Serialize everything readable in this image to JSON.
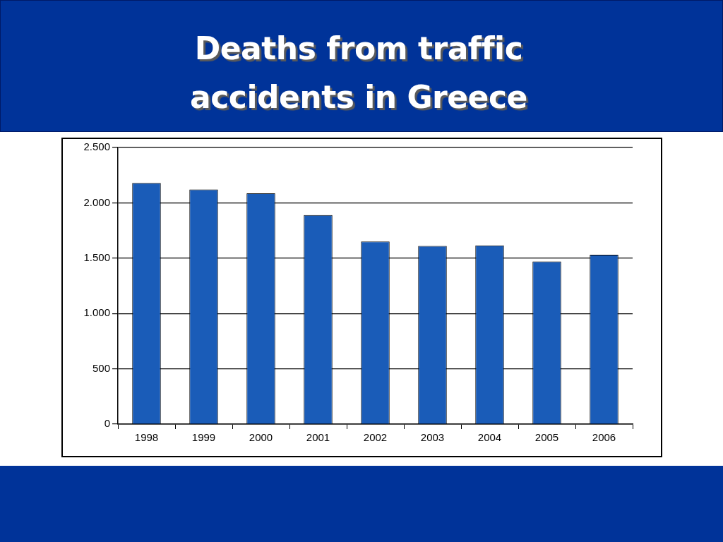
{
  "chart_data": {
    "type": "bar",
    "title": "Deaths from traffic accidents in Greece",
    "categories": [
      "1998",
      "1999",
      "2000",
      "2001",
      "2002",
      "2003",
      "2004",
      "2005",
      "2006"
    ],
    "values": [
      2180,
      2120,
      2085,
      1890,
      1650,
      1610,
      1615,
      1470,
      1530
    ],
    "color": "#1a5cb8",
    "ylim": [
      0,
      2500
    ],
    "yticks": [
      0,
      500,
      {
        "value": 1000,
        "label": "1.000"
      },
      {
        "value": 1500,
        "label": "1.500"
      },
      {
        "value": 2000,
        "label": "2.000"
      },
      {
        "value": 2500,
        "label": "2.500"
      }
    ],
    "grid": "y"
  }
}
